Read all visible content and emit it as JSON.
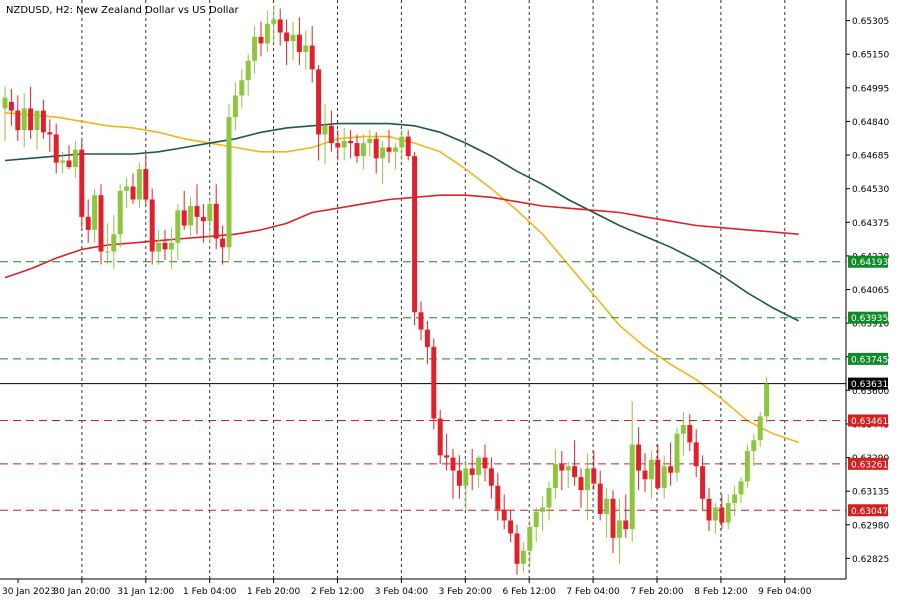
{
  "header": {
    "title": "NZDUSD, H2:  New Zealand Dollar vs US Dollar"
  },
  "colors": {
    "bull": "#8dc63f",
    "bear": "#e0202a",
    "ma_fast": "#f4b41a",
    "ma_mid": "#1e5a46",
    "ma_slow": "#e0202a",
    "support": "#d42020",
    "resistance": "#0f8a28",
    "current": "#000000",
    "grid": "#333333"
  },
  "chart_data": {
    "type": "candlestick",
    "title": "NZDUSD, H2:  New Zealand Dollar vs US Dollar",
    "ylim": [
      0.6273,
      0.654
    ],
    "y_ticks": [
      "0.65305",
      "0.65150",
      "0.64995",
      "0.64840",
      "0.64685",
      "0.64530",
      "0.64375",
      "0.64220",
      "0.64065",
      "0.63910",
      "0.63755",
      "0.63600",
      "0.63445",
      "0.63290",
      "0.63135",
      "0.62980",
      "0.62825"
    ],
    "x_labels": [
      "30 Jan 2023",
      "30 Jan 20:00",
      "31 Jan 12:00",
      "1 Feb 04:00",
      "1 Feb 20:00",
      "2 Feb 12:00",
      "3 Feb 04:00",
      "3 Feb 20:00",
      "6 Feb 12:00",
      "7 Feb 04:00",
      "7 Feb 20:00",
      "8 Feb 12:00",
      "9 Feb 04:00"
    ],
    "candles": [
      [
        0.649,
        0.65,
        0.6475,
        0.6495
      ],
      [
        0.6493,
        0.6499,
        0.6482,
        0.6489
      ],
      [
        0.6489,
        0.6496,
        0.6475,
        0.648
      ],
      [
        0.648,
        0.6497,
        0.6472,
        0.649
      ],
      [
        0.649,
        0.65,
        0.6476,
        0.648
      ],
      [
        0.648,
        0.6488,
        0.6471,
        0.6489
      ],
      [
        0.6489,
        0.6494,
        0.6476,
        0.6479
      ],
      [
        0.6479,
        0.6485,
        0.647,
        0.6478
      ],
      [
        0.6478,
        0.6483,
        0.646,
        0.6465
      ],
      [
        0.6465,
        0.647,
        0.646,
        0.6466
      ],
      [
        0.6466,
        0.6473,
        0.6462,
        0.6463
      ],
      [
        0.6463,
        0.6475,
        0.6458,
        0.6471
      ],
      [
        0.6471,
        0.6475,
        0.6435,
        0.644
      ],
      [
        0.644,
        0.6448,
        0.6428,
        0.6434
      ],
      [
        0.6434,
        0.6453,
        0.6428,
        0.645
      ],
      [
        0.645,
        0.6455,
        0.6418,
        0.6424
      ],
      [
        0.6424,
        0.6437,
        0.6418,
        0.6424
      ],
      [
        0.6424,
        0.6441,
        0.6416,
        0.6432
      ],
      [
        0.6432,
        0.6455,
        0.6426,
        0.6452
      ],
      [
        0.6452,
        0.6458,
        0.6444,
        0.6454
      ],
      [
        0.6454,
        0.646,
        0.6446,
        0.6448
      ],
      [
        0.6448,
        0.6465,
        0.6444,
        0.6462
      ],
      [
        0.6462,
        0.6469,
        0.6446,
        0.6448
      ],
      [
        0.6448,
        0.6453,
        0.6418,
        0.6424
      ],
      [
        0.6424,
        0.6434,
        0.6418,
        0.6428
      ],
      [
        0.6428,
        0.6434,
        0.642,
        0.6425
      ],
      [
        0.6425,
        0.6435,
        0.6416,
        0.6428
      ],
      [
        0.6428,
        0.6446,
        0.642,
        0.6443
      ],
      [
        0.6443,
        0.6452,
        0.6434,
        0.6436
      ],
      [
        0.6436,
        0.6449,
        0.6431,
        0.6445
      ],
      [
        0.6445,
        0.6455,
        0.6432,
        0.644
      ],
      [
        0.644,
        0.6446,
        0.6428,
        0.6438
      ],
      [
        0.6438,
        0.6448,
        0.6428,
        0.6446
      ],
      [
        0.6446,
        0.6455,
        0.6425,
        0.643
      ],
      [
        0.643,
        0.6436,
        0.6418,
        0.6426
      ],
      [
        0.6426,
        0.6492,
        0.642,
        0.6486
      ],
      [
        0.6486,
        0.6502,
        0.648,
        0.6496
      ],
      [
        0.6496,
        0.6508,
        0.649,
        0.6503
      ],
      [
        0.6503,
        0.6515,
        0.6496,
        0.6512
      ],
      [
        0.6512,
        0.6528,
        0.6506,
        0.6523
      ],
      [
        0.6523,
        0.653,
        0.6514,
        0.652
      ],
      [
        0.652,
        0.6535,
        0.6516,
        0.6529
      ],
      [
        0.6529,
        0.6537,
        0.652,
        0.6531
      ],
      [
        0.6531,
        0.6536,
        0.6519,
        0.6525
      ],
      [
        0.6525,
        0.6531,
        0.651,
        0.6521
      ],
      [
        0.6521,
        0.653,
        0.6512,
        0.6524
      ],
      [
        0.6524,
        0.6532,
        0.651,
        0.6516
      ],
      [
        0.6516,
        0.6526,
        0.6508,
        0.6519
      ],
      [
        0.6519,
        0.6528,
        0.6502,
        0.6508
      ],
      [
        0.6508,
        0.651,
        0.6466,
        0.6478
      ],
      [
        0.6478,
        0.6492,
        0.6464,
        0.6482
      ],
      [
        0.6482,
        0.6489,
        0.647,
        0.6474
      ],
      [
        0.6474,
        0.648,
        0.6466,
        0.6472
      ],
      [
        0.6472,
        0.6481,
        0.6466,
        0.6475
      ],
      [
        0.6475,
        0.648,
        0.6467,
        0.6474
      ],
      [
        0.6474,
        0.6478,
        0.6465,
        0.6468
      ],
      [
        0.6468,
        0.6478,
        0.6462,
        0.6474
      ],
      [
        0.6474,
        0.648,
        0.6468,
        0.6476
      ],
      [
        0.6476,
        0.6479,
        0.646,
        0.6467
      ],
      [
        0.6467,
        0.6475,
        0.6455,
        0.6472
      ],
      [
        0.6472,
        0.648,
        0.6465,
        0.647
      ],
      [
        0.647,
        0.6474,
        0.6462,
        0.6472
      ],
      [
        0.6472,
        0.648,
        0.6466,
        0.6477
      ],
      [
        0.6477,
        0.648,
        0.6466,
        0.6468
      ],
      [
        0.6468,
        0.647,
        0.639,
        0.6396
      ],
      [
        0.6396,
        0.6401,
        0.6383,
        0.6388
      ],
      [
        0.6388,
        0.6392,
        0.6372,
        0.638
      ],
      [
        0.638,
        0.6384,
        0.6342,
        0.6347
      ],
      [
        0.6347,
        0.6351,
        0.6326,
        0.633
      ],
      [
        0.633,
        0.634,
        0.6323,
        0.6329
      ],
      [
        0.6329,
        0.6333,
        0.631,
        0.6323
      ],
      [
        0.6323,
        0.633,
        0.631,
        0.6316
      ],
      [
        0.6316,
        0.6328,
        0.6305,
        0.6324
      ],
      [
        0.6324,
        0.6333,
        0.6314,
        0.6321
      ],
      [
        0.6321,
        0.633,
        0.6315,
        0.6329
      ],
      [
        0.6329,
        0.6335,
        0.6318,
        0.6324
      ],
      [
        0.6324,
        0.6329,
        0.631,
        0.6316
      ],
      [
        0.6316,
        0.6322,
        0.63,
        0.6305
      ],
      [
        0.6305,
        0.6312,
        0.6296,
        0.63
      ],
      [
        0.63,
        0.6305,
        0.629,
        0.6294
      ],
      [
        0.6294,
        0.6298,
        0.6275,
        0.628
      ],
      [
        0.628,
        0.629,
        0.6276,
        0.6286
      ],
      [
        0.6286,
        0.63,
        0.628,
        0.6297
      ],
      [
        0.6297,
        0.6306,
        0.629,
        0.6304
      ],
      [
        0.6304,
        0.6311,
        0.6295,
        0.6306
      ],
      [
        0.6306,
        0.6318,
        0.63,
        0.6315
      ],
      [
        0.6315,
        0.6333,
        0.631,
        0.6326
      ],
      [
        0.6326,
        0.6332,
        0.6314,
        0.6323
      ],
      [
        0.6323,
        0.6327,
        0.6315,
        0.6325
      ],
      [
        0.6325,
        0.6337,
        0.6316,
        0.632
      ],
      [
        0.632,
        0.6324,
        0.6306,
        0.6314
      ],
      [
        0.6314,
        0.6331,
        0.63,
        0.6324
      ],
      [
        0.6324,
        0.6332,
        0.6314,
        0.6317
      ],
      [
        0.6317,
        0.6323,
        0.63,
        0.6303
      ],
      [
        0.6303,
        0.6315,
        0.6292,
        0.631
      ],
      [
        0.631,
        0.6314,
        0.6285,
        0.6292
      ],
      [
        0.6292,
        0.631,
        0.628,
        0.63
      ],
      [
        0.63,
        0.6312,
        0.6292,
        0.6296
      ],
      [
        0.6296,
        0.6355,
        0.629,
        0.6335
      ],
      [
        0.6335,
        0.6343,
        0.6314,
        0.6323
      ],
      [
        0.6323,
        0.6331,
        0.6313,
        0.6319
      ],
      [
        0.6319,
        0.6332,
        0.631,
        0.6328
      ],
      [
        0.6328,
        0.6335,
        0.6314,
        0.6315
      ],
      [
        0.6315,
        0.633,
        0.631,
        0.6325
      ],
      [
        0.6325,
        0.6336,
        0.6316,
        0.6322
      ],
      [
        0.6322,
        0.6343,
        0.6318,
        0.634
      ],
      [
        0.634,
        0.635,
        0.633,
        0.6344
      ],
      [
        0.6344,
        0.6349,
        0.6332,
        0.6336
      ],
      [
        0.6336,
        0.6342,
        0.632,
        0.6325
      ],
      [
        0.6325,
        0.633,
        0.6305,
        0.631
      ],
      [
        0.631,
        0.6315,
        0.6295,
        0.63
      ],
      [
        0.63,
        0.6308,
        0.6294,
        0.6306
      ],
      [
        0.6306,
        0.6312,
        0.6296,
        0.6299
      ],
      [
        0.6299,
        0.6312,
        0.6296,
        0.6308
      ],
      [
        0.6308,
        0.6316,
        0.6302,
        0.6312
      ],
      [
        0.6312,
        0.632,
        0.6308,
        0.6318
      ],
      [
        0.6318,
        0.6335,
        0.6315,
        0.6332
      ],
      [
        0.6332,
        0.634,
        0.6325,
        0.6337
      ],
      [
        0.6337,
        0.635,
        0.6334,
        0.6348
      ],
      [
        0.6348,
        0.6366,
        0.6345,
        0.6363
      ]
    ],
    "series": [
      {
        "name": "",
        "type": "ma",
        "color_key": "ma_fast",
        "values": [
          0.6488,
          0.6487,
          0.6486,
          0.6484,
          0.6482,
          0.6481,
          0.6479,
          0.6476,
          0.6474,
          0.6472,
          0.647,
          0.647,
          0.6472,
          0.6476,
          0.6477,
          0.6477,
          0.6474,
          0.647,
          0.6462,
          0.6453,
          0.6443,
          0.6432,
          0.6418,
          0.6404,
          0.639,
          0.638,
          0.6372,
          0.6365,
          0.6356,
          0.6346,
          0.634,
          0.6336
        ]
      },
      {
        "name": "",
        "type": "ma",
        "color_key": "ma_mid",
        "values": [
          0.6466,
          0.6467,
          0.6468,
          0.6469,
          0.6469,
          0.6469,
          0.647,
          0.6472,
          0.6474,
          0.6476,
          0.6479,
          0.6481,
          0.6482,
          0.6483,
          0.6483,
          0.6483,
          0.6482,
          0.6479,
          0.6474,
          0.6468,
          0.6461,
          0.6455,
          0.6448,
          0.6442,
          0.6436,
          0.6431,
          0.6426,
          0.642,
          0.6413,
          0.6405,
          0.6398,
          0.6392
        ]
      },
      {
        "name": "",
        "type": "ma",
        "color_key": "ma_slow",
        "values": [
          0.6412,
          0.6416,
          0.6421,
          0.6425,
          0.6427,
          0.6428,
          0.6429,
          0.643,
          0.6431,
          0.6432,
          0.6434,
          0.6437,
          0.6442,
          0.6444,
          0.6446,
          0.6448,
          0.6449,
          0.645,
          0.645,
          0.6449,
          0.6447,
          0.6445,
          0.6444,
          0.6443,
          0.6442,
          0.644,
          0.6438,
          0.6436,
          0.6435,
          0.6434,
          0.6433,
          0.6432
        ]
      }
    ],
    "levels": [
      {
        "value": 0.64193,
        "label": "0.64193",
        "kind": "resistance"
      },
      {
        "value": 0.63935,
        "label": "0.63935",
        "kind": "resistance"
      },
      {
        "value": 0.63745,
        "label": "0.63745",
        "kind": "resistance"
      },
      {
        "value": 0.63631,
        "label": "0.63631",
        "kind": "current"
      },
      {
        "value": 0.63461,
        "label": "0.63461",
        "kind": "support"
      },
      {
        "value": 0.63261,
        "label": "0.63261",
        "kind": "support"
      },
      {
        "value": 0.63047,
        "label": "0.63047",
        "kind": "support"
      }
    ],
    "grid": true
  }
}
